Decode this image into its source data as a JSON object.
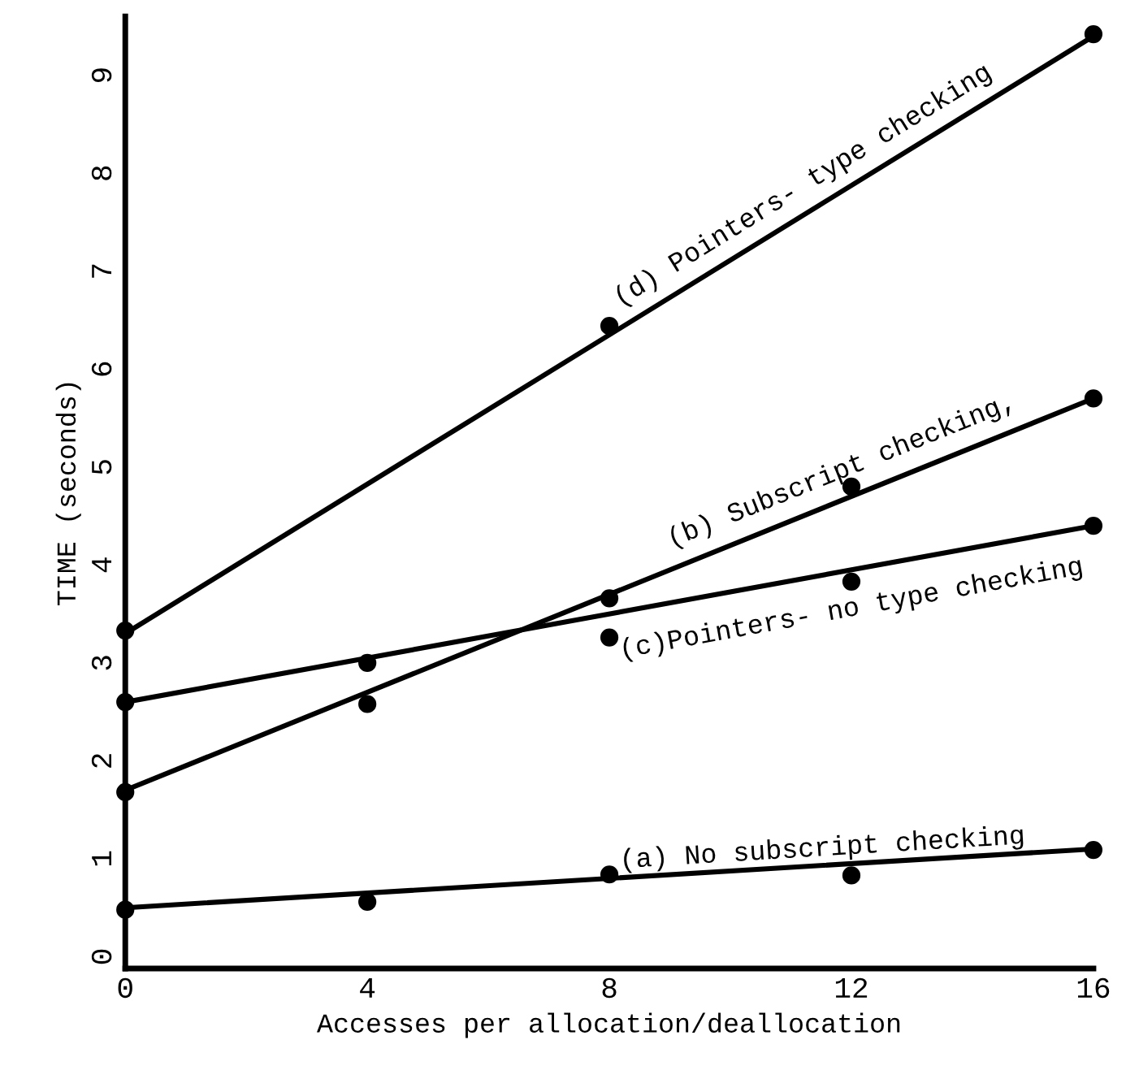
{
  "chart_data": {
    "type": "line",
    "xlabel": "Accesses per allocation/deallocation",
    "ylabel": "TIME (seconds)",
    "xlim": [
      0,
      16
    ],
    "xticks": [
      0,
      4,
      8,
      12,
      16
    ],
    "ylim": [
      -0.12,
      9.6
    ],
    "yticks": [
      0,
      1,
      2,
      3,
      4,
      5,
      6,
      7,
      8,
      9
    ],
    "grid": false,
    "legend": false,
    "marker": "circle",
    "series": [
      {
        "name": "(a) No subscript checking",
        "color": "#000000",
        "x": [
          0,
          16
        ],
        "values": [
          0.5,
          1.1
        ],
        "line_style": "solid",
        "marker": "none"
      },
      {
        "type": "scatter",
        "color": "#000000",
        "x": [
          0,
          4,
          8,
          12,
          16
        ],
        "values": [
          0.48,
          0.56,
          0.84,
          0.83,
          1.09
        ]
      },
      {
        "name": "(b) Subscript checking,",
        "color": "#000000",
        "x": [
          0,
          16
        ],
        "values": [
          1.7,
          5.7
        ],
        "line_style": "solid",
        "marker": "none"
      },
      {
        "type": "scatter",
        "color": "#000000",
        "x": [
          0,
          4,
          8,
          12,
          16
        ],
        "values": [
          1.68,
          2.58,
          3.66,
          4.8,
          5.7
        ]
      },
      {
        "name": "(c)Pointers- no type checking",
        "color": "#000000",
        "x": [
          0,
          16
        ],
        "values": [
          2.6,
          4.4
        ],
        "line_style": "solid",
        "marker": "none"
      },
      {
        "type": "scatter",
        "color": "#000000",
        "x": [
          0,
          4,
          8,
          12,
          16
        ],
        "values": [
          2.6,
          3.0,
          3.26,
          3.83,
          4.4
        ]
      },
      {
        "name": "(d) Pointers- type checking",
        "color": "#000000",
        "x": [
          0,
          16
        ],
        "values": [
          3.3,
          9.4
        ],
        "line_style": "solid",
        "marker": "none"
      },
      {
        "type": "scatter",
        "color": "#000000",
        "x": [
          0,
          8,
          16
        ],
        "values": [
          3.33,
          6.44,
          9.42
        ]
      }
    ]
  }
}
